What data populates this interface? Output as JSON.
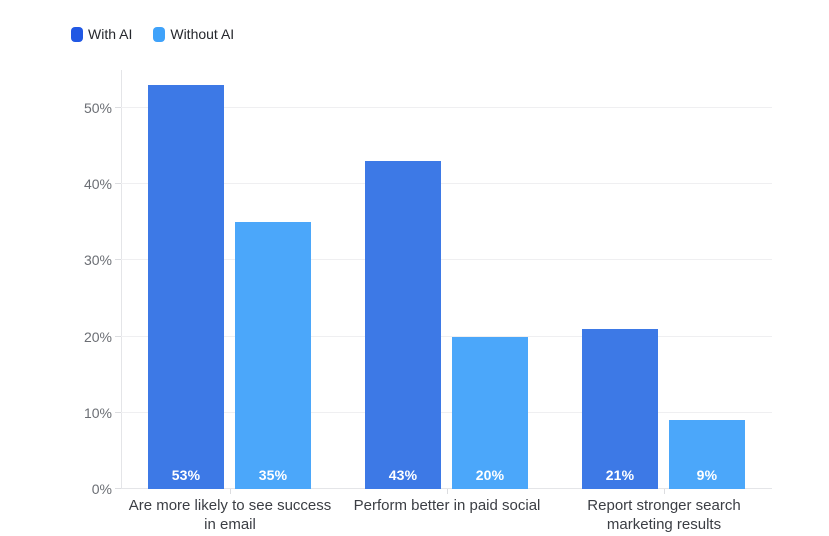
{
  "legend": {
    "items": [
      {
        "label": "With AI",
        "swatch_color": "#2158e4"
      },
      {
        "label": "Without AI",
        "swatch_color": "#3fa2fa"
      }
    ]
  },
  "y_axis": {
    "tick_labels": [
      "0%",
      "10%",
      "20%",
      "30%",
      "40%",
      "50%"
    ]
  },
  "x_axis": {
    "labels_lines": [
      [
        "Are more likely to see success",
        "in email"
      ],
      [
        "Perform better in paid social"
      ],
      [
        "Report stronger search",
        "marketing results"
      ]
    ]
  },
  "chart_data": {
    "type": "bar",
    "title": "",
    "xlabel": "",
    "ylabel": "",
    "categories": [
      "Are more likely to see success in email",
      "Perform better in paid social",
      "Report stronger search marketing results"
    ],
    "series": [
      {
        "name": "With AI",
        "color": "#3d79e6",
        "values": [
          53,
          43,
          21
        ]
      },
      {
        "name": "Without AI",
        "color": "#4ba7fa",
        "values": [
          35,
          20,
          9
        ]
      }
    ],
    "value_label_format": "{v}%",
    "value_label_color": "#ffffff",
    "y_tick_labels": [
      "0%",
      "10%",
      "20%",
      "30%",
      "40%",
      "50%"
    ],
    "ylim": [
      0,
      55
    ],
    "y_tick_interval": 10,
    "grid": true,
    "legend_position": "top-left"
  }
}
